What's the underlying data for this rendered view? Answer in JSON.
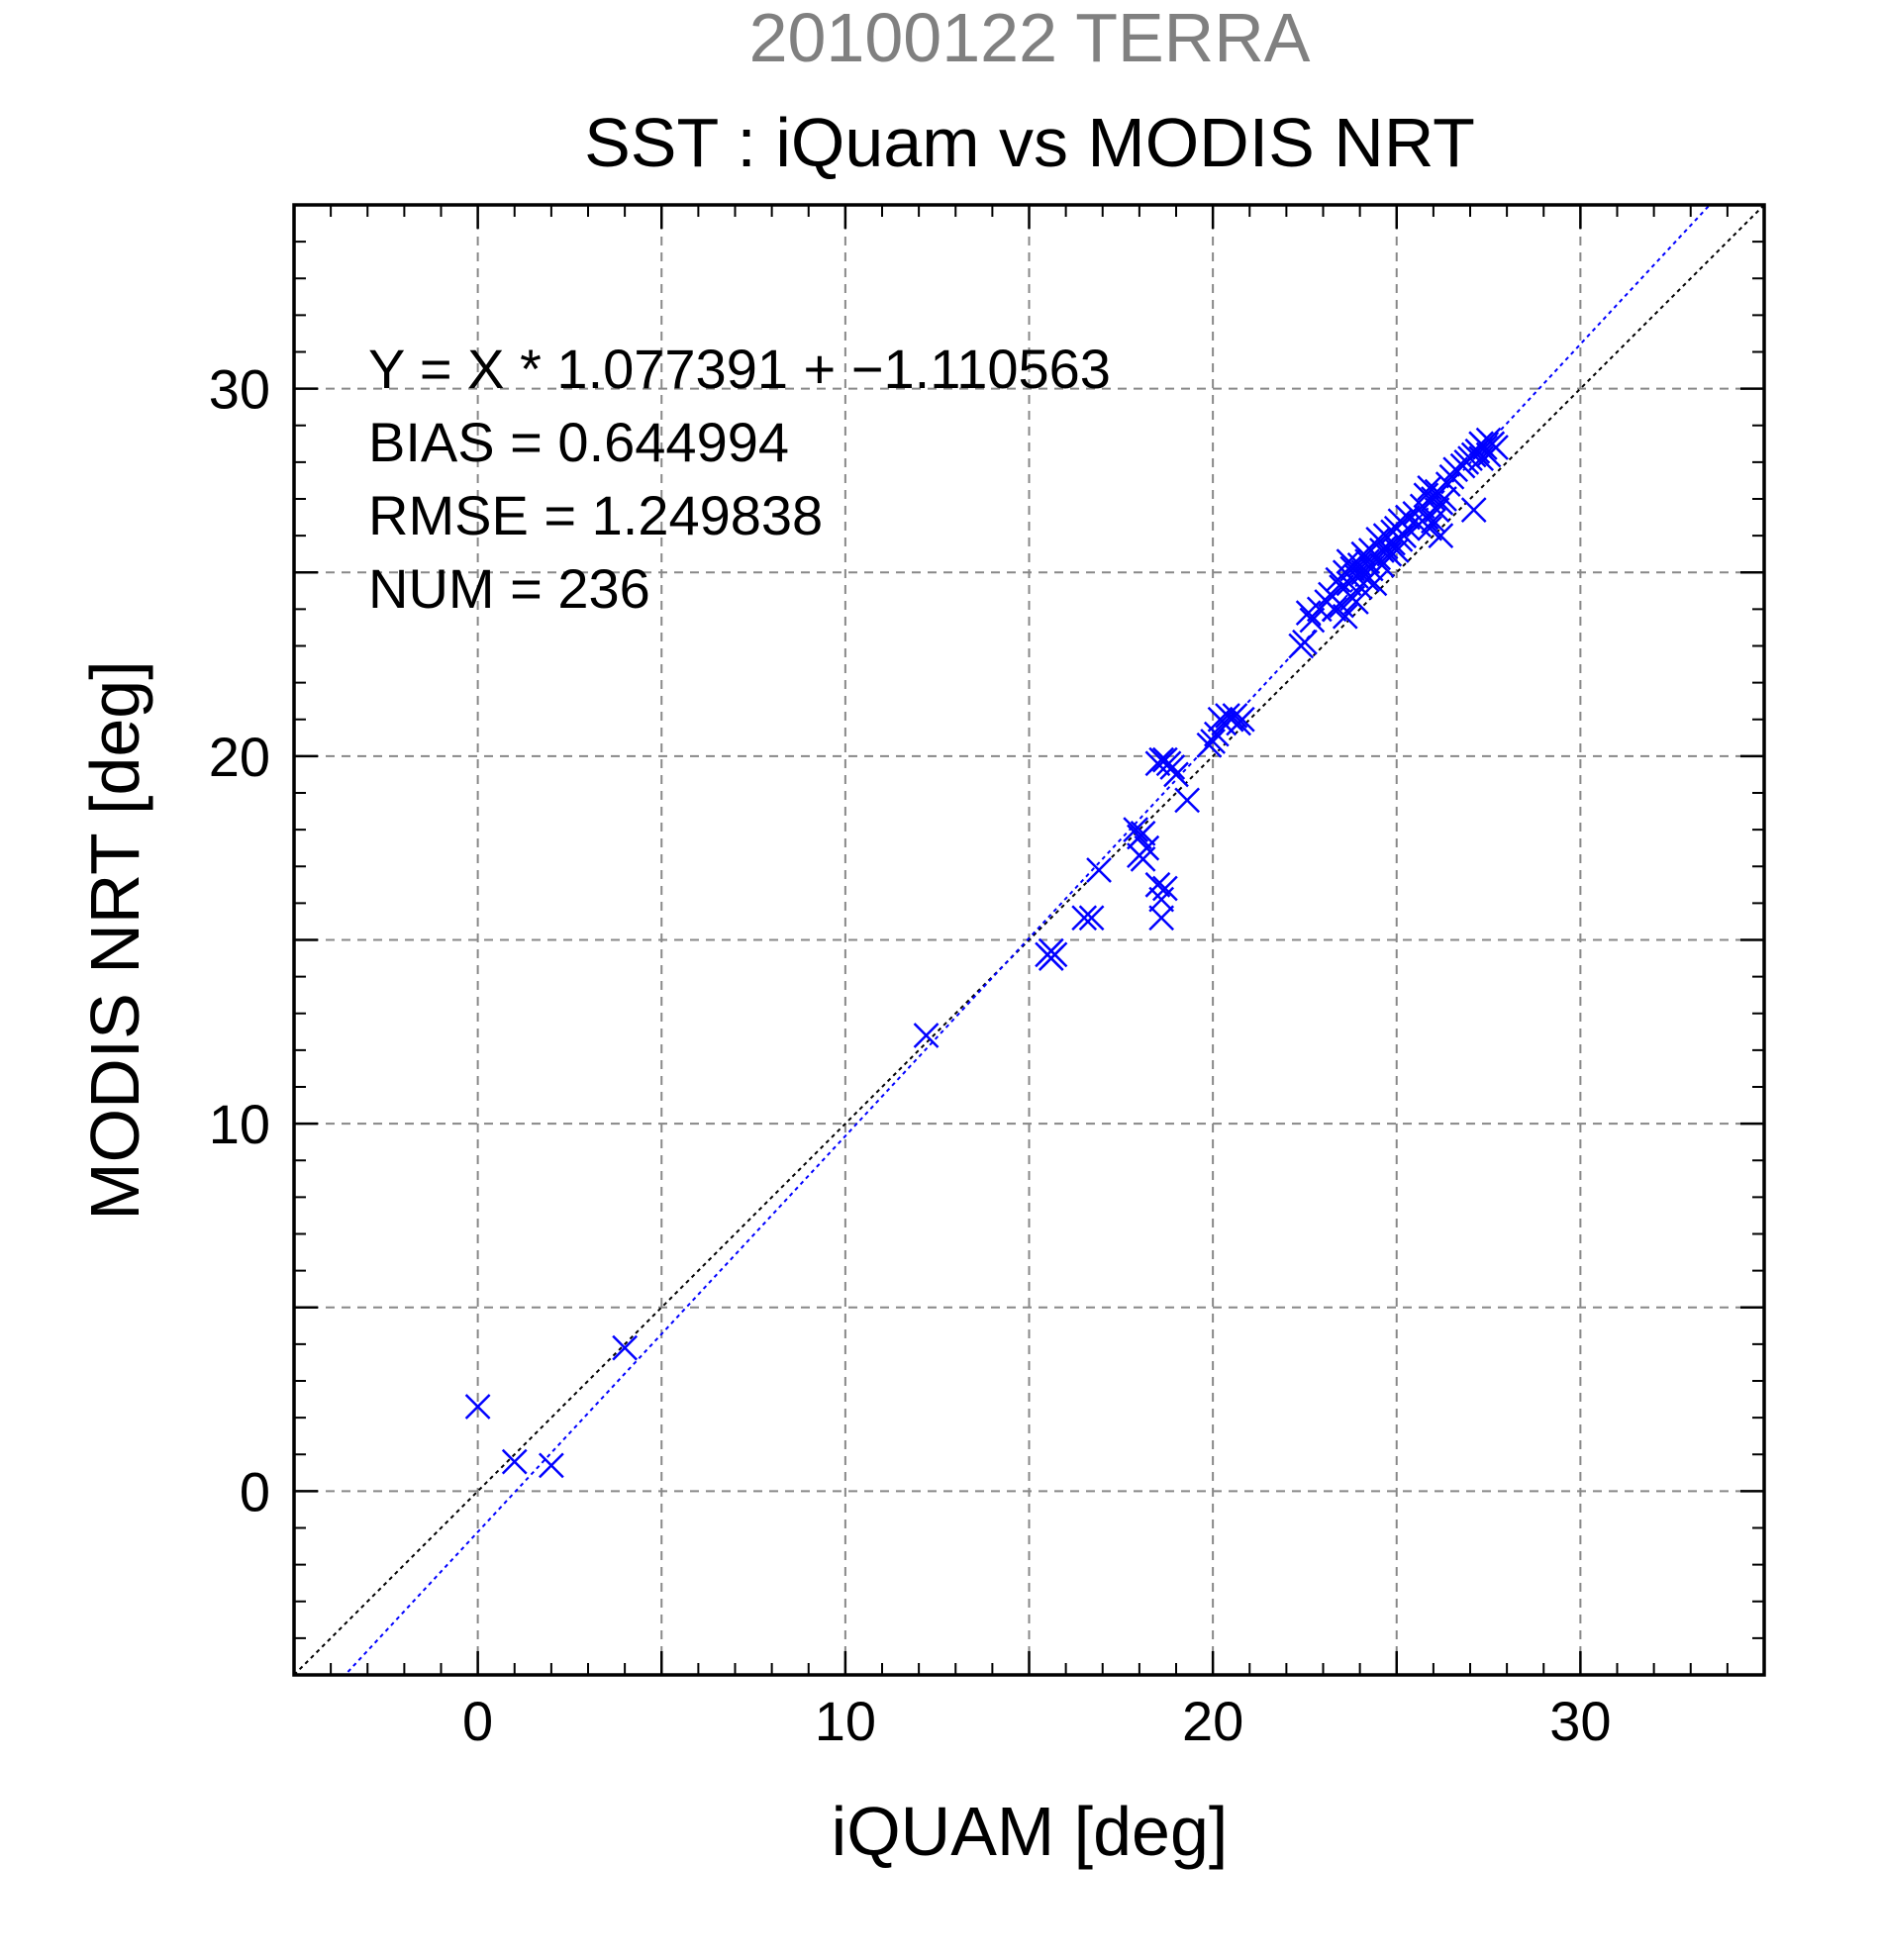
{
  "chart_data": {
    "type": "scatter",
    "title": "SST : iQuam vs MODIS NRT",
    "subtitle": "20100122 TERRA",
    "xlabel": "iQUAM [deg]",
    "ylabel": "MODIS NRT [deg]",
    "xlim": [
      -5,
      35
    ],
    "ylim": [
      -5,
      35
    ],
    "major_ticks": [
      0,
      10,
      20,
      30
    ],
    "tick_labels": [
      "0",
      "10",
      "20",
      "30"
    ],
    "grid_every": 5,
    "minor_every": 1,
    "grid": true,
    "colors": {
      "points": "#0000ff",
      "fit_line": "#0000ff",
      "identity_line": "#000000",
      "subtitle": "#808080",
      "text": "#000000",
      "grid": "#888888"
    },
    "marker": "x",
    "fit": {
      "slope": 1.077391,
      "intercept": -1.110563
    },
    "annotations": [
      "Y = X * 1.077391 + −1.110563",
      "BIAS = 0.644994",
      "RMSE = 1.249838",
      "NUM = 236"
    ],
    "points": [
      [
        0.0,
        2.3
      ],
      [
        1.0,
        0.8
      ],
      [
        2.0,
        0.7
      ],
      [
        4.0,
        3.9
      ],
      [
        12.2,
        12.4
      ],
      [
        15.5,
        14.6
      ],
      [
        15.6,
        14.5
      ],
      [
        15.7,
        14.6
      ],
      [
        15.6,
        14.7
      ],
      [
        16.5,
        15.6
      ],
      [
        16.7,
        15.6
      ],
      [
        16.9,
        16.9
      ],
      [
        17.9,
        18.0
      ],
      [
        18.0,
        17.8
      ],
      [
        18.1,
        17.9
      ],
      [
        18.0,
        17.3
      ],
      [
        18.1,
        17.2
      ],
      [
        18.2,
        17.5
      ],
      [
        18.5,
        16.5
      ],
      [
        18.6,
        16.1
      ],
      [
        18.6,
        15.6
      ],
      [
        18.7,
        16.4
      ],
      [
        18.5,
        19.8
      ],
      [
        18.6,
        19.9
      ],
      [
        18.7,
        19.9
      ],
      [
        18.8,
        19.8
      ],
      [
        18.9,
        19.7
      ],
      [
        19.0,
        19.5
      ],
      [
        19.3,
        18.8
      ],
      [
        19.9,
        20.3
      ],
      [
        20.0,
        20.4
      ],
      [
        20.1,
        20.6
      ],
      [
        20.2,
        21.0
      ],
      [
        20.3,
        20.9
      ],
      [
        20.4,
        21.1
      ],
      [
        20.5,
        21.0
      ],
      [
        20.6,
        21.1
      ],
      [
        20.7,
        20.9
      ],
      [
        20.8,
        21.0
      ],
      [
        22.4,
        23.0
      ],
      [
        22.5,
        23.1
      ],
      [
        22.6,
        23.9
      ],
      [
        22.7,
        23.7
      ],
      [
        22.9,
        24.0
      ],
      [
        23.1,
        24.2
      ],
      [
        23.2,
        24.4
      ],
      [
        23.3,
        24.0
      ],
      [
        23.4,
        24.8
      ],
      [
        23.5,
        24.6
      ],
      [
        23.5,
        24.1
      ],
      [
        23.6,
        25.0
      ],
      [
        23.6,
        23.8
      ],
      [
        23.7,
        24.7
      ],
      [
        23.7,
        25.3
      ],
      [
        23.8,
        24.3
      ],
      [
        23.8,
        25.1
      ],
      [
        23.9,
        24.9
      ],
      [
        23.9,
        24.2
      ],
      [
        24.0,
        25.2
      ],
      [
        24.0,
        24.6
      ],
      [
        24.1,
        25.0
      ],
      [
        24.1,
        25.5
      ],
      [
        24.2,
        24.8
      ],
      [
        24.2,
        25.3
      ],
      [
        24.3,
        25.6
      ],
      [
        24.3,
        25.1
      ],
      [
        24.4,
        24.7
      ],
      [
        24.5,
        25.4
      ],
      [
        24.5,
        25.9
      ],
      [
        24.6,
        25.6
      ],
      [
        24.6,
        25.2
      ],
      [
        24.7,
        26.0
      ],
      [
        24.7,
        25.7
      ],
      [
        24.8,
        25.5
      ],
      [
        24.9,
        26.1
      ],
      [
        24.9,
        25.8
      ],
      [
        25.0,
        26.2
      ],
      [
        25.0,
        25.6
      ],
      [
        25.1,
        26.4
      ],
      [
        25.1,
        25.9
      ],
      [
        25.2,
        26.0
      ],
      [
        25.3,
        26.5
      ],
      [
        25.3,
        26.2
      ],
      [
        25.5,
        26.6
      ],
      [
        25.6,
        26.3
      ],
      [
        25.7,
        26.8
      ],
      [
        25.8,
        27.1
      ],
      [
        25.8,
        26.5
      ],
      [
        25.9,
        27.3
      ],
      [
        25.9,
        26.2
      ],
      [
        26.0,
        27.0
      ],
      [
        26.0,
        26.4
      ],
      [
        26.1,
        26.7
      ],
      [
        26.1,
        27.2
      ],
      [
        26.2,
        26.0
      ],
      [
        26.2,
        26.9
      ],
      [
        26.3,
        27.0
      ],
      [
        26.4,
        27.4
      ],
      [
        26.5,
        27.6
      ],
      [
        26.6,
        27.8
      ],
      [
        26.8,
        27.9
      ],
      [
        26.9,
        28.0
      ],
      [
        27.0,
        28.1
      ],
      [
        27.1,
        26.7
      ],
      [
        27.1,
        28.2
      ],
      [
        27.2,
        28.3
      ],
      [
        27.3,
        28.5
      ],
      [
        27.3,
        28.1
      ],
      [
        27.4,
        28.4
      ],
      [
        27.5,
        28.6
      ],
      [
        27.5,
        28.2
      ],
      [
        27.6,
        28.5
      ],
      [
        27.7,
        28.4
      ]
    ]
  }
}
